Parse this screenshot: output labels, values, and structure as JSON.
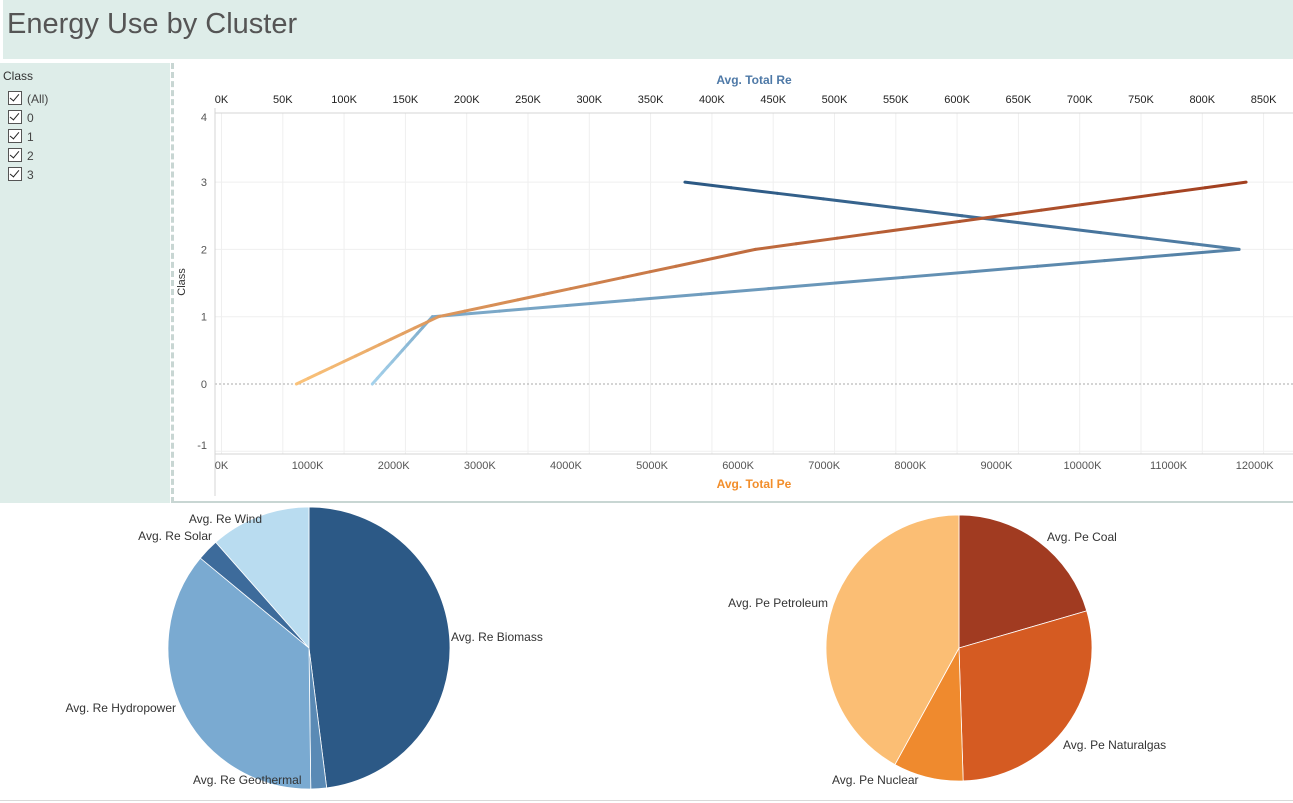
{
  "header": {
    "title": "Energy Use by Cluster"
  },
  "filter": {
    "title": "Class",
    "items": [
      {
        "label": "(All)",
        "checked": true
      },
      {
        "label": "0",
        "checked": true
      },
      {
        "label": "1",
        "checked": true
      },
      {
        "label": "2",
        "checked": true
      },
      {
        "label": "3",
        "checked": true
      }
    ]
  },
  "chart_data": [
    {
      "type": "line",
      "x_top_label": "Avg. Total Re",
      "x_bottom_label": "Avg. Total Pe",
      "ylabel": "Class",
      "ylim": [
        -1,
        4
      ],
      "y_ticks": [
        "-1",
        "0",
        "1",
        "2",
        "3",
        "4"
      ],
      "x_top_ticks": [
        "0K",
        "50K",
        "100K",
        "150K",
        "200K",
        "250K",
        "300K",
        "350K",
        "400K",
        "450K",
        "500K",
        "550K",
        "600K",
        "650K",
        "700K",
        "750K",
        "800K",
        "850K"
      ],
      "x_bottom_ticks": [
        "0K",
        "1000K",
        "2000K",
        "3000K",
        "4000K",
        "5000K",
        "6000K",
        "7000K",
        "8000K",
        "9000K",
        "10000K",
        "11000K",
        "12000K"
      ],
      "x_top_range": [
        0,
        850000
      ],
      "x_bottom_range": [
        0,
        12000000
      ],
      "series": [
        {
          "axis": "top",
          "color_start": "#a6d3ec",
          "color_end": "#2a5783",
          "points": [
            [
              123000,
              0
            ],
            [
              172000,
              1
            ],
            [
              830000,
              2
            ],
            [
              378000,
              3
            ]
          ]
        },
        {
          "axis": "bottom",
          "color_start": "#fbc47b",
          "color_end": "#a13e1f",
          "points": [
            [
              870000,
              0
            ],
            [
              2520000,
              1
            ],
            [
              6200000,
              2
            ],
            [
              11900000,
              3
            ]
          ]
        }
      ],
      "grid": true
    },
    {
      "type": "pie",
      "slices": [
        {
          "label": "Avg. Re Biomass",
          "value": 48.0,
          "color": "#2c5986"
        },
        {
          "label": "Avg. Re Geothermal",
          "value": 1.8,
          "color": "#5a8ab5"
        },
        {
          "label": "Avg. Re Hydropower",
          "value": 36.2,
          "color": "#7aaad1"
        },
        {
          "label": "Avg. Re Solar",
          "value": 2.5,
          "color": "#3d6b9b"
        },
        {
          "label": "Avg. Re Wind",
          "value": 11.5,
          "color": "#b9dcf0"
        }
      ]
    },
    {
      "type": "pie",
      "slices": [
        {
          "label": "Avg. Pe Coal",
          "value": 20.5,
          "color": "#a13b21"
        },
        {
          "label": "Avg. Pe Naturalgas",
          "value": 29.0,
          "color": "#d55b22"
        },
        {
          "label": "Avg. Pe Nuclear",
          "value": 8.5,
          "color": "#ef8a2e"
        },
        {
          "label": "Avg. Pe Petroleum",
          "value": 42.0,
          "color": "#fbbe74"
        }
      ]
    }
  ]
}
